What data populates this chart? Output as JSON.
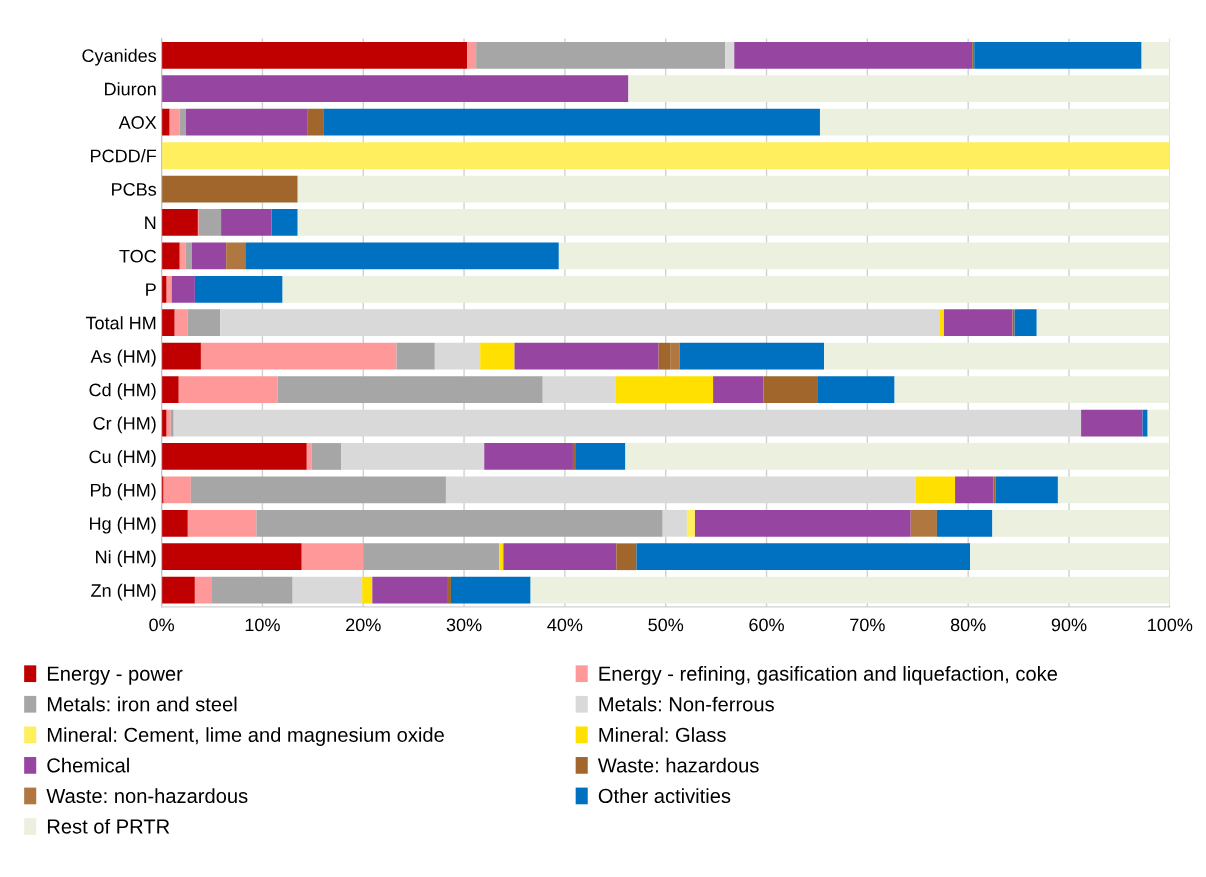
{
  "chart_data": {
    "type": "bar",
    "orientation": "horizontal",
    "stacked": true,
    "categories": [
      "Cyanides",
      "Diuron",
      "AOX",
      "PCDD/F",
      "PCBs",
      "N",
      "TOC",
      "P",
      "Total HM",
      "As (HM)",
      "Cd (HM)",
      "Cr (HM)",
      "Cu (HM)",
      "Pb (HM)",
      "Hg (HM)",
      "Ni (HM)",
      "Zn (HM)"
    ],
    "series": [
      {
        "name": "Energy - power",
        "color": "#c00000",
        "values": [
          30.3,
          0,
          0.8,
          0,
          0,
          3.6,
          1.8,
          0.5,
          1.3,
          3.9,
          1.7,
          0.5,
          14.4,
          0.2,
          2.6,
          13.9,
          3.3
        ]
      },
      {
        "name": "Energy - refining, gasification and liquefaction, coke",
        "color": "#ff9999",
        "values": [
          0.9,
          0,
          1.0,
          0,
          0,
          0.1,
          0.6,
          0.5,
          1.3,
          19.4,
          9.8,
          0.4,
          0.5,
          2.7,
          6.8,
          6.1,
          1.7
        ]
      },
      {
        "name": "Metals: iron and steel",
        "color": "#a6a6a6",
        "values": [
          24.7,
          0,
          0.6,
          0,
          0,
          2.2,
          0.6,
          0,
          3.2,
          3.8,
          26.3,
          0.3,
          2.9,
          25.3,
          40.3,
          13.5,
          8.0
        ]
      },
      {
        "name": "Metals: Non-ferrous",
        "color": "#d9d9d9",
        "values": [
          0.9,
          0,
          0,
          0,
          0,
          0,
          0,
          0,
          71.4,
          4.5,
          7.2,
          90.0,
          14.2,
          46.6,
          2.4,
          0,
          6.9
        ]
      },
      {
        "name": "Mineral: Cement, lime and magnesium oxide",
        "color": "#ffef5e",
        "values": [
          0,
          0,
          0,
          100,
          0,
          0,
          0,
          0,
          0,
          0,
          0,
          0,
          0,
          0,
          0.8,
          0,
          0
        ]
      },
      {
        "name": "Mineral: Glass",
        "color": "#ffe000",
        "values": [
          0,
          0,
          0,
          0,
          0,
          0,
          0,
          0,
          0.4,
          3.4,
          9.7,
          0,
          0,
          3.9,
          0,
          0.4,
          1.0
        ]
      },
      {
        "name": "Chemical",
        "color": "#9646a0",
        "values": [
          23.6,
          46.3,
          12.1,
          0,
          0,
          5.0,
          3.4,
          2.3,
          6.8,
          14.3,
          5.0,
          6.1,
          8.8,
          3.8,
          21.4,
          11.2,
          7.5
        ]
      },
      {
        "name": "Waste: hazardous",
        "color": "#a0662c",
        "values": [
          0.2,
          0,
          1.6,
          0,
          13.5,
          0,
          0,
          0,
          0.2,
          1.2,
          5.4,
          0,
          0.3,
          0.2,
          0,
          2.0,
          0.3
        ]
      },
      {
        "name": "Waste: non-hazardous",
        "color": "#b07840",
        "values": [
          0,
          0,
          0,
          0,
          0,
          0,
          1.9,
          0,
          0,
          0.9,
          0,
          0,
          0,
          0,
          2.6,
          0,
          0
        ]
      },
      {
        "name": "Other activities",
        "color": "#0070c0",
        "values": [
          16.6,
          0,
          49.2,
          0,
          0,
          2.6,
          31.1,
          8.7,
          2.2,
          14.3,
          7.6,
          0.5,
          4.9,
          6.2,
          5.5,
          33.1,
          7.9
        ]
      },
      {
        "name": "Rest of PRTR",
        "color": "#ebf1de",
        "values": [
          2.8,
          53.7,
          34.7,
          0,
          86.5,
          86.5,
          60.6,
          88.0,
          13.2,
          34.3,
          27.3,
          2.2,
          54.0,
          11.2,
          17.6,
          19.8,
          63.4
        ]
      }
    ],
    "xlim": [
      0,
      100
    ],
    "xticks": [
      {
        "value": 0,
        "label": "0%"
      },
      {
        "value": 10,
        "label": "10%"
      },
      {
        "value": 20,
        "label": "20%"
      },
      {
        "value": 30,
        "label": "30%"
      },
      {
        "value": 40,
        "label": "40%"
      },
      {
        "value": 50,
        "label": "50%"
      },
      {
        "value": 60,
        "label": "60%"
      },
      {
        "value": 70,
        "label": "70%"
      },
      {
        "value": 80,
        "label": "80%"
      },
      {
        "value": 90,
        "label": "90%"
      },
      {
        "value": 100,
        "label": "100%"
      }
    ],
    "grid": "x",
    "legend": "bottom"
  }
}
